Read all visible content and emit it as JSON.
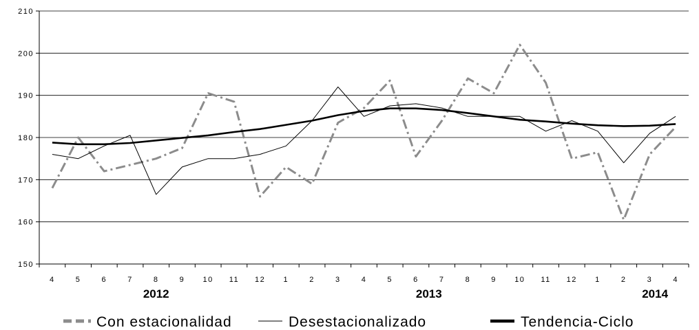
{
  "chart_data": {
    "type": "line",
    "categories": [
      "4",
      "5",
      "6",
      "7",
      "8",
      "9",
      "10",
      "11",
      "12",
      "1",
      "2",
      "3",
      "4",
      "5",
      "6",
      "7",
      "8",
      "9",
      "10",
      "11",
      "12",
      "1",
      "2",
      "3",
      "4"
    ],
    "year_labels": [
      {
        "label": "2012",
        "start": 0,
        "end": 8
      },
      {
        "label": "2013",
        "start": 9,
        "end": 20
      },
      {
        "label": "2014",
        "start": 21,
        "end": 24
      }
    ],
    "ylim": [
      150,
      210
    ],
    "yticks": [
      150,
      160,
      170,
      180,
      190,
      200,
      210
    ],
    "grid": true,
    "legend_position": "bottom",
    "series": [
      {
        "name": "Con estacionalidad",
        "style": "dash-dot",
        "color": "#8c8c8c",
        "values": [
          168,
          180,
          172,
          173.5,
          175,
          177.5,
          190.5,
          188.5,
          166,
          173,
          169,
          183.5,
          187,
          193.5,
          175.5,
          184,
          194,
          190.5,
          202,
          193,
          175,
          176.5,
          160.5,
          176,
          182.5
        ]
      },
      {
        "name": "Desestacionalizado",
        "style": "thin",
        "color": "#000000",
        "values": [
          176,
          175,
          178,
          180.5,
          166.5,
          173,
          175,
          175,
          176,
          178,
          184,
          192,
          185,
          187.5,
          188,
          187,
          185,
          185,
          185,
          181.5,
          184,
          181.5,
          174,
          181,
          185
        ]
      },
      {
        "name": "Tendencia-Ciclo",
        "style": "thick",
        "color": "#000000",
        "values": [
          178.8,
          178.4,
          178.4,
          178.7,
          179.3,
          179.9,
          180.5,
          181.3,
          182,
          183,
          184,
          185.3,
          186.3,
          186.9,
          186.9,
          186.5,
          185.8,
          185,
          184.2,
          183.8,
          183.3,
          182.9,
          182.7,
          182.8,
          183.2
        ]
      }
    ]
  }
}
